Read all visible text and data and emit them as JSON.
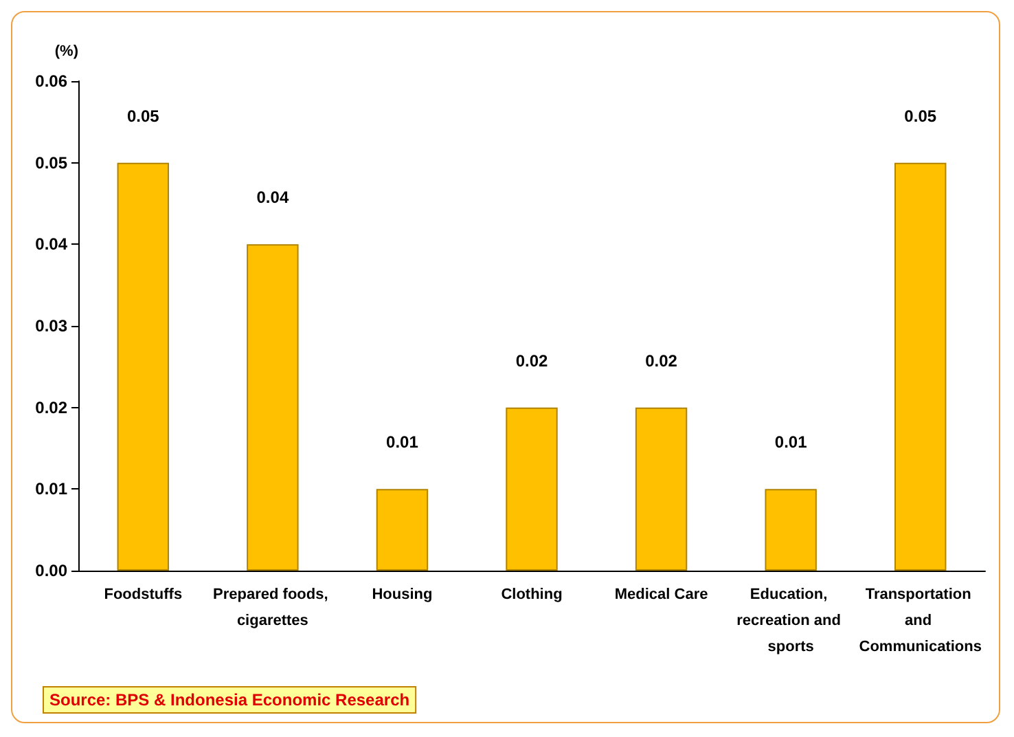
{
  "chart_data": {
    "type": "bar",
    "ylabel": "(%)",
    "categories": [
      "Foodstuffs",
      "Prepared foods, cigarettes",
      "Housing",
      "Clothing",
      "Medical Care",
      "Education, recreation and sports",
      "Transportation and Communications"
    ],
    "values": [
      0.05,
      0.04,
      0.01,
      0.02,
      0.02,
      0.01,
      0.05
    ],
    "color": "#ffc000",
    "ylim": [
      0,
      0.06
    ],
    "yticks": [
      {
        "value": 0,
        "label": "0.00"
      },
      {
        "value": 0.01,
        "label": "0.01"
      },
      {
        "value": 0.02,
        "label": "0.02"
      },
      {
        "value": 0.03,
        "label": "0.03"
      },
      {
        "value": 0.04,
        "label": "0.04"
      },
      {
        "value": 0.05,
        "label": "0.05"
      },
      {
        "value": 0.06,
        "label": "0.06"
      }
    ],
    "data_labels": true,
    "grid": false,
    "annotations": [
      "Source: BPS & Indonesia Economic Research"
    ]
  }
}
